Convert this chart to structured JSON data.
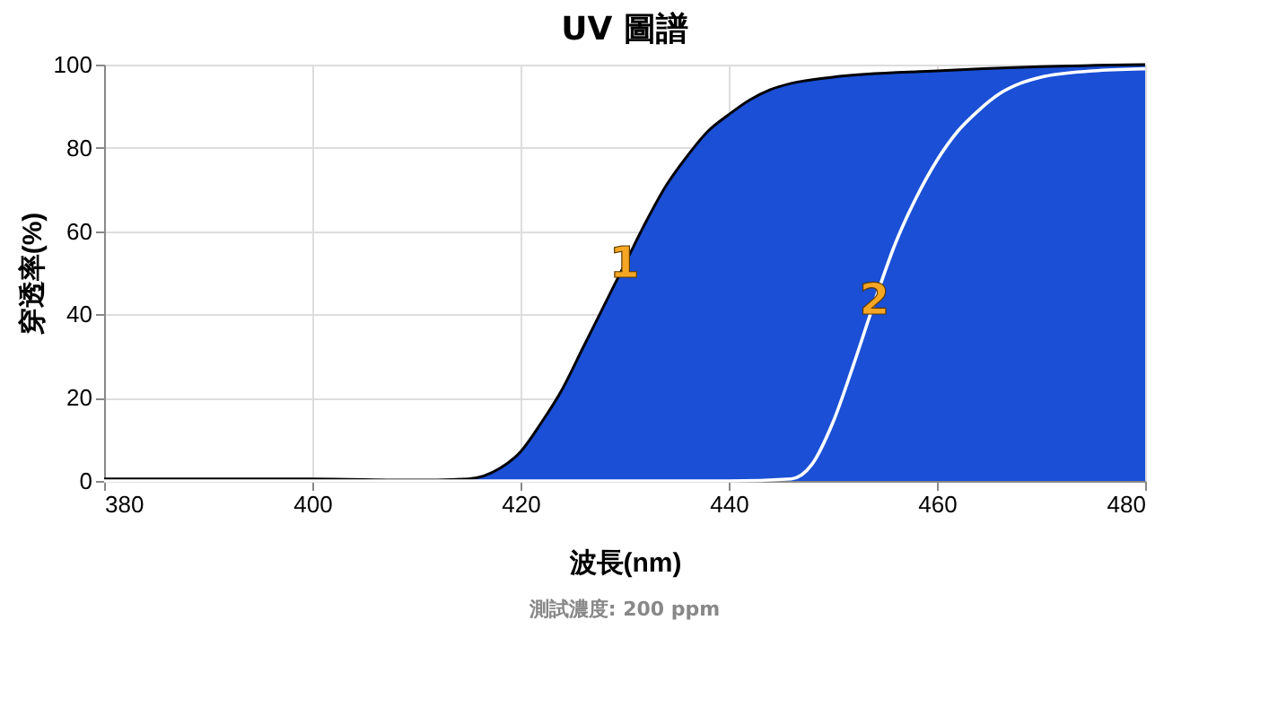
{
  "chart_data": {
    "type": "line",
    "title": "UV 圖譜",
    "xlabel": "波長(nm)",
    "ylabel": "穿透率(%)",
    "xlim": [
      380,
      480
    ],
    "xticks": [
      380,
      400,
      420,
      440,
      460,
      480
    ],
    "ylim": [
      0,
      100
    ],
    "yticks": [
      0,
      20,
      40,
      60,
      80,
      100
    ],
    "grid": true,
    "series": [
      {
        "type": "area",
        "color": "#1a4fd6",
        "x": [
          380,
          400,
          410,
          415,
          418,
          420,
          422,
          424,
          426,
          428,
          430,
          432,
          434,
          436,
          438,
          440,
          442,
          444,
          446,
          450,
          460,
          470,
          480
        ],
        "values": [
          0.5,
          0.5,
          0.2,
          0.5,
          3,
          7,
          14,
          22,
          32,
          42,
          52,
          62,
          71,
          78,
          84,
          88,
          91.5,
          94,
          95.5,
          97,
          98.5,
          99.5,
          100
        ]
      },
      {
        "type": "line",
        "color": "#ffffff",
        "x": [
          380,
          440,
          446,
          448,
          450,
          452,
          454,
          456,
          458,
          460,
          462,
          464,
          466,
          468,
          470,
          475,
          480
        ],
        "values": [
          0,
          0,
          0.5,
          4,
          14,
          28,
          43,
          57,
          68,
          77,
          84,
          89,
          93,
          95.5,
          97,
          98.5,
          99
        ]
      }
    ],
    "annotations": [
      {
        "text": "1",
        "x": 430,
        "y": 52
      },
      {
        "text": "2",
        "x": 454,
        "y": 43
      },
      "測試濃度: 200 ppm"
    ]
  }
}
